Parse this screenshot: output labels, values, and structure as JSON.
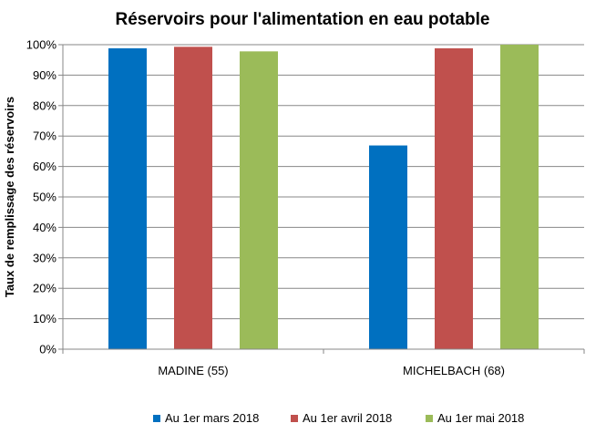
{
  "chart_data": {
    "type": "bar",
    "title": "Réservoirs pour l'alimentation en eau potable",
    "xlabel": "",
    "ylabel": "Taux de remplissage des réservoirs",
    "categories": [
      "MADINE (55)",
      "MICHELBACH (68)"
    ],
    "series": [
      {
        "name": "Au 1er mars 2018",
        "color": "#0070C0",
        "values": [
          98.8,
          66.9
        ]
      },
      {
        "name": "Au 1er avril 2018",
        "color": "#C0504D",
        "values": [
          99.3,
          98.8
        ]
      },
      {
        "name": "Au 1er mai 2018",
        "color": "#9BBB59",
        "values": [
          97.8,
          100
        ]
      }
    ],
    "ylim": [
      0,
      100
    ],
    "yticks": [
      "0%",
      "10%",
      "20%",
      "30%",
      "40%",
      "50%",
      "60%",
      "70%",
      "80%",
      "90%",
      "100%"
    ],
    "grid": true,
    "legend_position": "bottom"
  }
}
